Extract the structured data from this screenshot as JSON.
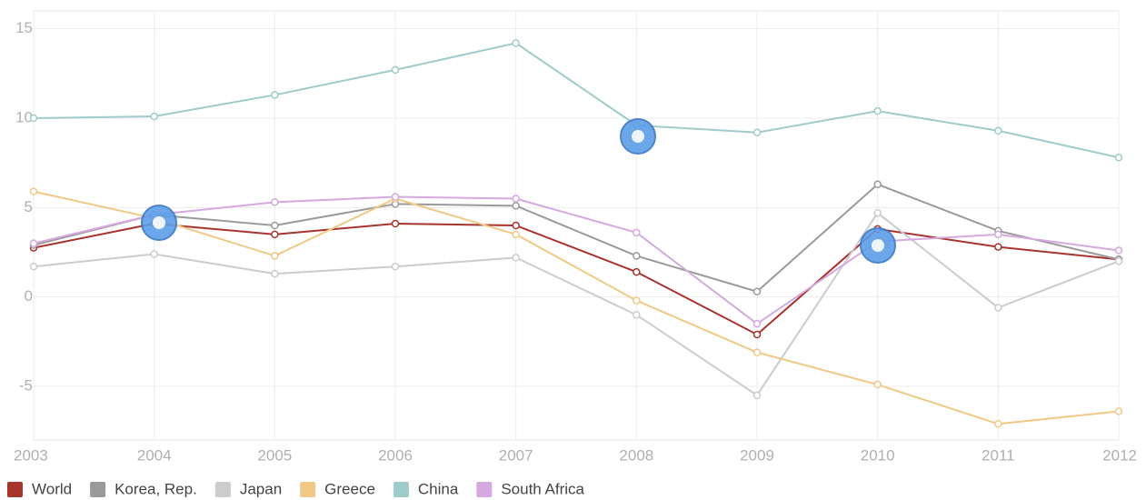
{
  "chart_data": {
    "type": "line",
    "categories": [
      "2003",
      "2004",
      "2005",
      "2006",
      "2007",
      "2008",
      "2009",
      "2010",
      "2011",
      "2012"
    ],
    "series": [
      {
        "name": "World",
        "color": "#a8342e",
        "values": [
          2.75,
          4.1,
          3.5,
          4.1,
          4.0,
          1.4,
          -2.1,
          3.8,
          2.8,
          2.1
        ]
      },
      {
        "name": "Korea, Rep.",
        "color": "#9a9a9a",
        "values": [
          2.9,
          4.6,
          4.0,
          5.2,
          5.1,
          2.3,
          0.3,
          6.3,
          3.7,
          2.1
        ]
      },
      {
        "name": "Japan",
        "color": "#cccccc",
        "values": [
          1.7,
          2.4,
          1.3,
          1.7,
          2.2,
          -1.0,
          -5.5,
          4.7,
          -0.6,
          2.0
        ]
      },
      {
        "name": "Greece",
        "color": "#f0c987",
        "values": [
          5.9,
          4.4,
          2.3,
          5.5,
          3.5,
          -0.2,
          -3.1,
          -4.9,
          -7.1,
          -6.4
        ]
      },
      {
        "name": "China",
        "color": "#9fcbcb",
        "values": [
          10.0,
          10.1,
          11.3,
          12.7,
          14.2,
          9.6,
          9.2,
          10.4,
          9.3,
          7.8
        ]
      },
      {
        "name": "South Africa",
        "color": "#d6a8e0",
        "values": [
          3.0,
          4.6,
          5.3,
          5.6,
          5.5,
          3.6,
          -1.5,
          3.1,
          3.5,
          2.6
        ]
      }
    ],
    "ylim": [
      -8,
      16
    ],
    "yticks": [
      -5,
      0,
      5,
      10,
      15
    ],
    "grid": true,
    "legend": "bottom"
  }
}
